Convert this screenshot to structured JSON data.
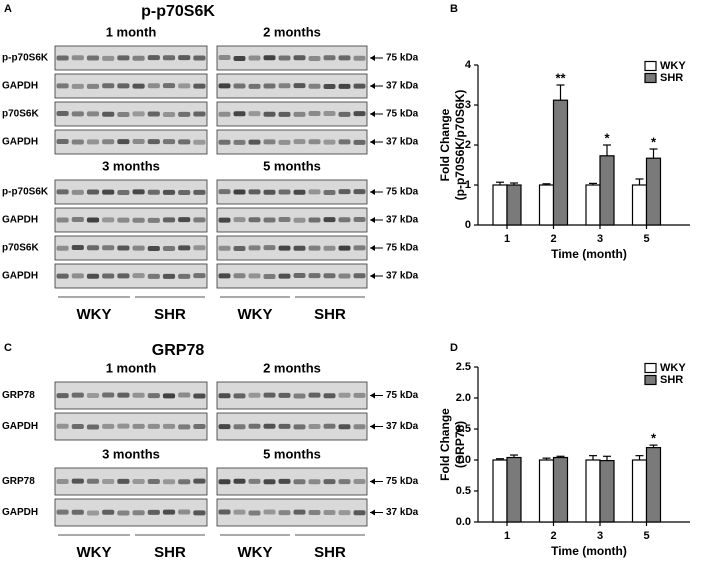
{
  "panels": [
    {
      "letter": "A",
      "title": "p-p70S6K",
      "blocks": [
        {
          "left_heading": "1 month",
          "right_heading": "2 months",
          "row_labels": [
            "p-p70S6K",
            "GAPDH",
            "p70S6K",
            "GAPDH"
          ],
          "markers": [
            "75 kDa",
            "37 kDa",
            "75 kDa",
            "37 kDa"
          ]
        },
        {
          "left_heading": "3 months",
          "right_heading": "5 months",
          "row_labels": [
            "p-p70S6K",
            "GAPDH",
            "p70S6K",
            "GAPDH"
          ],
          "markers": [
            "75 kDa",
            "37 kDa",
            "75 kDa",
            "37 kDa"
          ]
        }
      ],
      "lane_labels": [
        "WKY",
        "SHR",
        "WKY",
        "SHR"
      ]
    },
    {
      "letter": "C",
      "title": "GRP78",
      "blocks": [
        {
          "left_heading": "1 month",
          "right_heading": "2 months",
          "row_labels": [
            "GRP78",
            "GAPDH"
          ],
          "markers": [
            "75 kDa",
            "37 kDa"
          ]
        },
        {
          "left_heading": "3 months",
          "right_heading": "5 months",
          "row_labels": [
            "GRP78",
            "GAPDH"
          ],
          "markers": [
            "75 kDa",
            "37 kDa"
          ]
        }
      ],
      "lane_labels": [
        "WKY",
        "SHR",
        "WKY",
        "SHR"
      ]
    }
  ],
  "chart_data": [
    {
      "type": "bar",
      "panel_label": "B",
      "ylabel": [
        "Fold Change",
        "(p-p70S6K/p70S6K)"
      ],
      "xlabel": "Time (month)",
      "categories": [
        "1",
        "2",
        "3",
        "5"
      ],
      "series": [
        {
          "name": "WKY",
          "color": "#ffffff",
          "values": [
            1.0,
            1.0,
            1.0,
            1.0
          ],
          "errors": [
            0.07,
            0.03,
            0.04,
            0.15
          ]
        },
        {
          "name": "SHR",
          "color": "#7a7a7a",
          "values": [
            1.0,
            3.12,
            1.73,
            1.67
          ],
          "errors": [
            0.05,
            0.38,
            0.27,
            0.23
          ],
          "significance": [
            null,
            "**",
            "*",
            "*"
          ]
        }
      ],
      "ylim": [
        0,
        4
      ],
      "yticks": [
        0,
        1,
        2,
        3,
        4
      ],
      "legend": "upper right"
    },
    {
      "type": "bar",
      "panel_label": "D",
      "ylabel": [
        "Fold Change",
        "(GRP78)"
      ],
      "xlabel": "Time (month)",
      "categories": [
        "1",
        "2",
        "3",
        "5"
      ],
      "series": [
        {
          "name": "WKY",
          "color": "#ffffff",
          "values": [
            1.0,
            1.0,
            1.0,
            1.0
          ],
          "errors": [
            0.02,
            0.03,
            0.07,
            0.07
          ]
        },
        {
          "name": "SHR",
          "color": "#7a7a7a",
          "values": [
            1.04,
            1.04,
            0.99,
            1.2
          ],
          "errors": [
            0.04,
            0.02,
            0.07,
            0.04
          ],
          "significance": [
            null,
            null,
            null,
            "*"
          ]
        }
      ],
      "ylim": [
        0,
        2.5
      ],
      "yticks": [
        {
          "value": 0,
          "label": "0.0"
        },
        {
          "value": 0.5,
          "label": "0.5"
        },
        {
          "value": 1,
          "label": "1.0"
        },
        {
          "value": 1.5,
          "label": "1.5"
        },
        {
          "value": 2,
          "label": "2.0"
        },
        {
          "value": 2.5,
          "label": "2.5"
        }
      ],
      "legend": "upper right"
    }
  ]
}
